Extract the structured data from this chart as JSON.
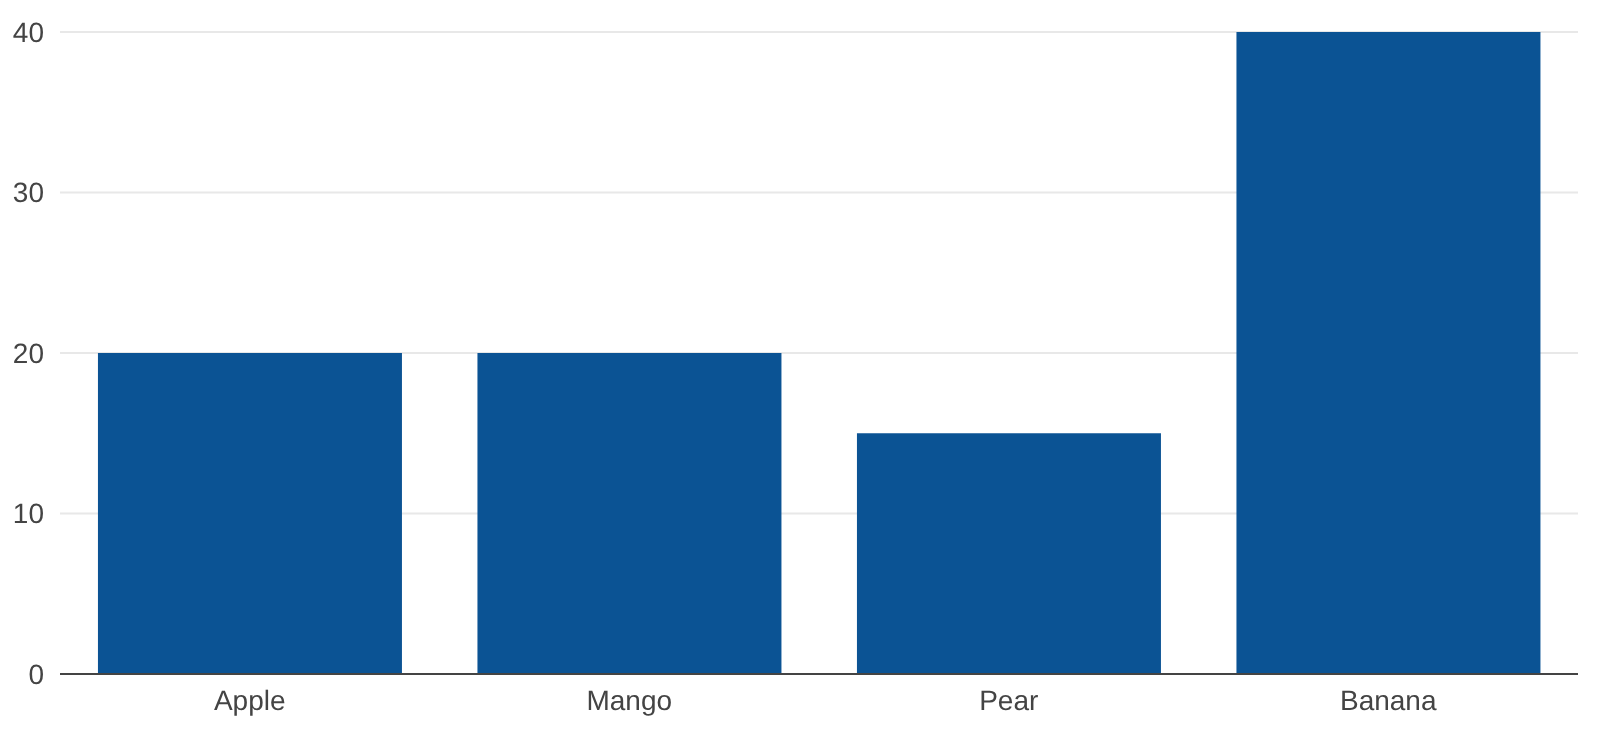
{
  "chart_data": {
    "type": "bar",
    "categories": [
      "Apple",
      "Mango",
      "Pear",
      "Banana"
    ],
    "values": [
      20,
      20,
      15,
      40
    ],
    "color": "#0b5394",
    "ylim": [
      0,
      40
    ],
    "yticks": [
      0,
      10,
      20,
      30,
      40
    ],
    "grid": "y"
  }
}
